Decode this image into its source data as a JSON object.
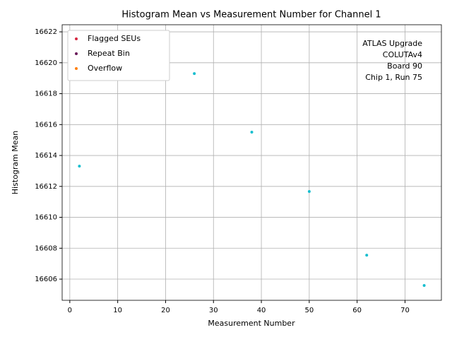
{
  "chart_data": {
    "type": "scatter",
    "title": "Histogram Mean vs Measurement Number for Channel 1",
    "x_label": "Measurement Number",
    "y_label": "Histogram Mean",
    "annotation": [
      "ATLAS Upgrade",
      "COLUTAv4",
      "Board 90",
      "Chip 1, Run 75"
    ],
    "xlim": [
      -1.6,
      77.6
    ],
    "xticks": [
      0,
      10,
      20,
      30,
      40,
      50,
      60,
      70
    ],
    "ylim": [
      16604.63,
      16622.46
    ],
    "yticks": [
      16606,
      16608,
      16610,
      16612,
      16614,
      16616,
      16618,
      16620,
      16622
    ],
    "grid": true,
    "legend_position": "upper left",
    "series": [
      {
        "color": "#17becf",
        "x": [
          2,
          26,
          38,
          50,
          62,
          74
        ],
        "values": [
          16613.31,
          16619.3,
          16615.51,
          16611.67,
          16607.55,
          16605.59
        ]
      },
      {
        "name": "Flagged SEUs",
        "color": "#d62740",
        "x": [],
        "values": []
      },
      {
        "name": "Repeat Bin",
        "color": "#6a1b5a",
        "x": [],
        "values": []
      },
      {
        "name": "Overflow",
        "color": "#ff7f0e",
        "x": [],
        "values": []
      }
    ]
  }
}
